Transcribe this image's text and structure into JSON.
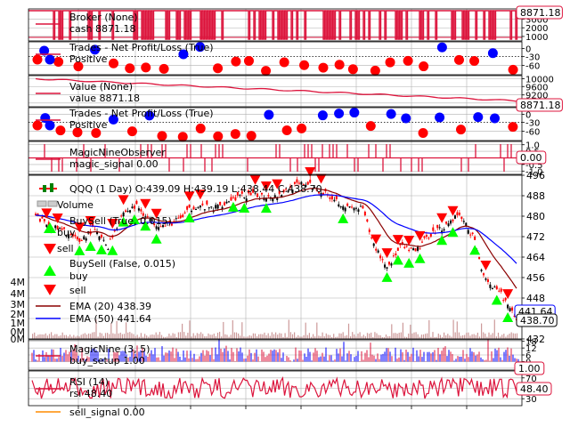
{
  "colors": {
    "crimson": "#dc143c",
    "red": "#ff0000",
    "blue": "#0000ff",
    "lime": "#00ff00",
    "green": "#008000",
    "darkred": "#8b0000",
    "orange": "#ff8c00",
    "grid": "#b0b0b0",
    "volume": "#cd9a9a",
    "up_candle": "#000000"
  },
  "panels": {
    "broker": {
      "legend": [
        "Broker (None)",
        "cash 8871.18"
      ],
      "ticks": [
        "4000",
        "3000",
        "2000",
        "1000"
      ],
      "flag": "8871.18"
    },
    "trades1": {
      "legend": [
        "Trades - Net Profit/Loss (True)",
        "Positive"
      ],
      "ticks": [
        "0",
        "-30",
        "-60"
      ]
    },
    "value": {
      "legend": [
        "Value (None)",
        "value 8871.18"
      ],
      "ticks": [
        "10000",
        "9600",
        "9200",
        "8800"
      ],
      "flag": "8871.18"
    },
    "trades2": {
      "legend": [
        "Trades - Net Profit/Loss (True)",
        "Positive"
      ],
      "ticks": [
        "0",
        "-30",
        "-60"
      ]
    },
    "observer": {
      "legend": [
        "MagicNineObserver",
        "magic_signal 0.00"
      ],
      "ticks": [
        "1.0",
        "0.5",
        "0.0",
        "-0.5",
        "-1.0"
      ],
      "flag": "0.00"
    },
    "price": {
      "legend": [
        "QQQ (1 Day) O:439.09 H:439.19 L:438.44 C:438.70",
        "Volume",
        "BuySell (True, 0.015)",
        "buy",
        "sell",
        "BuySell (False, 0.015)",
        "buy",
        "sell",
        "EMA (20) 438.39",
        "EMA (50) 441.64"
      ],
      "ticks": [
        "496",
        "488",
        "480",
        "472",
        "464",
        "456",
        "448",
        "440",
        "432"
      ],
      "vol_ticks": [
        "4M",
        "4M",
        "3M",
        "2M",
        "1M",
        "0M",
        "0M"
      ],
      "flags": [
        "441.64",
        "438.70"
      ]
    },
    "magicnine": {
      "legend": [
        "MagicNine (3, 5)",
        "buy_setup 1.00"
      ],
      "ticks": [
        "18",
        "12",
        "6",
        "0",
        "-6"
      ],
      "flag": "1.00"
    },
    "rsi": {
      "legend": [
        "RSI (14)",
        "rsi 48.40",
        "sell_signal 0.00"
      ],
      "ticks": [
        "70",
        "50",
        "30"
      ],
      "flag": "48.40"
    }
  },
  "chart_data": [
    {
      "type": "line",
      "title": "Broker (None)",
      "series": [
        {
          "name": "cash",
          "last": 8871.18
        }
      ],
      "ylim": [
        0,
        4500
      ]
    },
    {
      "type": "scatter",
      "title": "Trades - Net Profit/Loss (True)",
      "series": [
        {
          "name": "Positive"
        },
        {
          "name": "Negative"
        }
      ],
      "ylim": [
        -75,
        20
      ]
    },
    {
      "type": "line",
      "title": "Value (None)",
      "series": [
        {
          "name": "value",
          "last": 8871.18
        }
      ],
      "ylim": [
        8700,
        10100
      ]
    },
    {
      "type": "scatter",
      "title": "Trades - Net Profit/Loss (True)",
      "series": [
        {
          "name": "Positive"
        },
        {
          "name": "Negative"
        }
      ],
      "ylim": [
        -75,
        20
      ]
    },
    {
      "type": "line",
      "title": "MagicNineObserver",
      "series": [
        {
          "name": "magic_signal",
          "last": 0.0
        }
      ],
      "ylim": [
        -1,
        1
      ]
    },
    {
      "type": "line",
      "title": "QQQ (1 Day)",
      "ohlc_last": {
        "open": 439.09,
        "high": 439.19,
        "low": 438.44,
        "close": 438.7
      },
      "ylim": [
        432,
        496
      ],
      "close_path": [
        {
          "t": 0.0,
          "v": 480
        },
        {
          "t": 0.03,
          "v": 476
        },
        {
          "t": 0.06,
          "v": 474
        },
        {
          "t": 0.09,
          "v": 470
        },
        {
          "t": 0.12,
          "v": 475
        },
        {
          "t": 0.15,
          "v": 468
        },
        {
          "t": 0.18,
          "v": 481
        },
        {
          "t": 0.21,
          "v": 484
        },
        {
          "t": 0.24,
          "v": 478
        },
        {
          "t": 0.27,
          "v": 476
        },
        {
          "t": 0.3,
          "v": 479
        },
        {
          "t": 0.33,
          "v": 484
        },
        {
          "t": 0.37,
          "v": 483
        },
        {
          "t": 0.41,
          "v": 487
        },
        {
          "t": 0.44,
          "v": 488
        },
        {
          "t": 0.47,
          "v": 488
        },
        {
          "t": 0.5,
          "v": 488
        },
        {
          "t": 0.53,
          "v": 491
        },
        {
          "t": 0.56,
          "v": 493
        },
        {
          "t": 0.59,
          "v": 490
        },
        {
          "t": 0.62,
          "v": 487
        },
        {
          "t": 0.65,
          "v": 483
        },
        {
          "t": 0.68,
          "v": 483
        },
        {
          "t": 0.7,
          "v": 470
        },
        {
          "t": 0.73,
          "v": 460
        },
        {
          "t": 0.76,
          "v": 468
        },
        {
          "t": 0.79,
          "v": 466
        },
        {
          "t": 0.82,
          "v": 473
        },
        {
          "t": 0.85,
          "v": 476
        },
        {
          "t": 0.88,
          "v": 481
        },
        {
          "t": 0.91,
          "v": 472
        },
        {
          "t": 0.93,
          "v": 458
        },
        {
          "t": 0.95,
          "v": 452
        },
        {
          "t": 0.97,
          "v": 449
        },
        {
          "t": 1.0,
          "v": 438.7
        }
      ],
      "series": [
        {
          "name": "EMA (20)",
          "last": 438.39
        },
        {
          "name": "EMA (50)",
          "last": 441.64
        }
      ]
    },
    {
      "type": "line",
      "title": "MagicNine (3, 5)",
      "series": [
        {
          "name": "buy_setup",
          "last": 1.0
        }
      ],
      "ylim": [
        -9,
        20
      ]
    },
    {
      "type": "line",
      "title": "RSI (14)",
      "series": [
        {
          "name": "rsi",
          "last": 48.4
        },
        {
          "name": "sell_signal",
          "last": 0.0
        }
      ],
      "ylim": [
        20,
        78
      ]
    }
  ]
}
